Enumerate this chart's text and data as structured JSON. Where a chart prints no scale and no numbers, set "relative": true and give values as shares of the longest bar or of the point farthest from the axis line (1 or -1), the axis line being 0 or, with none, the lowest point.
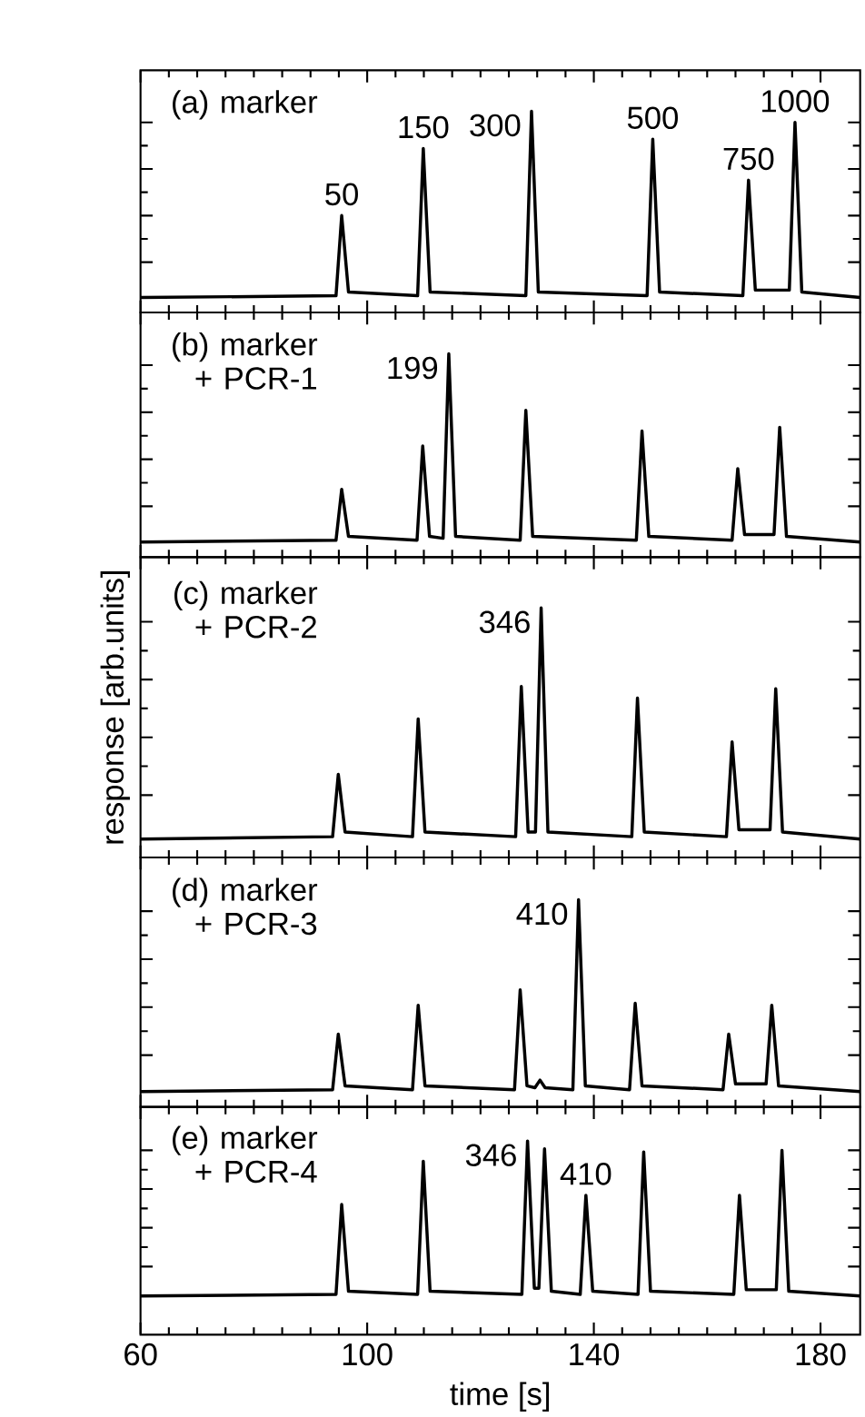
{
  "chart_data": [
    {
      "type": "line",
      "relative": true,
      "tick_labels": false,
      "xlim": [
        60,
        187
      ],
      "xticks": [
        60,
        100,
        140,
        180
      ],
      "annotations": [
        "(a) marker",
        {
          "text": "50",
          "x": 95.5,
          "y": 0.44
        },
        {
          "text": "150",
          "x": 109.9,
          "y": 0.8
        },
        {
          "text": "300",
          "x": 129,
          "y": 1
        },
        {
          "text": "500",
          "x": 150.4,
          "y": 0.85
        },
        {
          "text": "750",
          "x": 167.3,
          "y": 0.63
        },
        {
          "text": "1000",
          "x": 175.5,
          "y": 0.94
        }
      ],
      "series": [
        {
          "color": "#000000",
          "x": [
            60,
            94.5,
            95.5,
            96.7,
            108.9,
            109.9,
            111.1,
            128,
            129,
            130.2,
            149.4,
            150.4,
            151.6,
            166.3,
            167.3,
            168.5,
            174.5,
            175.5,
            176.7,
            187
          ],
          "values": [
            0,
            0.01,
            0.44,
            0.03,
            0.01,
            0.8,
            0.03,
            0.01,
            1,
            0.03,
            0.01,
            0.85,
            0.03,
            0.01,
            0.63,
            0.04,
            0.04,
            0.94,
            0.03,
            0
          ]
        }
      ]
    },
    {
      "type": "line",
      "relative": true,
      "tick_labels": false,
      "xlim": [
        60,
        187
      ],
      "xticks": [
        60,
        100,
        140,
        180
      ],
      "annotations": [
        "(b) marker + PCR-1",
        {
          "text": "199",
          "x": 114.4,
          "y": 1
        }
      ],
      "series": [
        {
          "color": "#000000",
          "x": [
            60,
            94.5,
            95.5,
            96.7,
            108.8,
            109.8,
            111,
            113.4,
            114.4,
            115.6,
            127,
            128,
            129.2,
            147.5,
            148.5,
            149.7,
            164.4,
            165.4,
            166.6,
            171.8,
            172.8,
            174,
            187
          ],
          "values": [
            0,
            0.01,
            0.28,
            0.03,
            0.01,
            0.51,
            0.03,
            0.02,
            1,
            0.03,
            0.01,
            0.7,
            0.03,
            0.01,
            0.59,
            0.03,
            0.01,
            0.39,
            0.04,
            0.04,
            0.61,
            0.03,
            0
          ]
        }
      ]
    },
    {
      "type": "line",
      "relative": true,
      "tick_labels": false,
      "xlim": [
        60,
        187
      ],
      "xticks": [
        60,
        100,
        140,
        180
      ],
      "ylabel": "response [arb.units]",
      "annotations": [
        "(c) marker + PCR-2",
        {
          "text": "346",
          "x": 130.7,
          "y": 1
        }
      ],
      "series": [
        {
          "color": "#000000",
          "x": [
            60,
            93.9,
            94.9,
            96.1,
            108,
            109,
            110.2,
            126.2,
            127.2,
            128.4,
            129.7,
            130.7,
            131.9,
            146.7,
            147.7,
            148.9,
            163.4,
            164.4,
            165.6,
            171.1,
            172.1,
            173.3,
            187
          ],
          "values": [
            0,
            0.01,
            0.28,
            0.03,
            0.01,
            0.52,
            0.03,
            0.01,
            0.66,
            0.03,
            0.03,
            1,
            0.03,
            0.01,
            0.61,
            0.03,
            0.01,
            0.42,
            0.04,
            0.04,
            0.65,
            0.03,
            0
          ]
        }
      ]
    },
    {
      "type": "line",
      "relative": true,
      "tick_labels": false,
      "xlim": [
        60,
        187
      ],
      "xticks": [
        60,
        100,
        140,
        180
      ],
      "annotations": [
        "(d) marker + PCR-3",
        {
          "text": "410",
          "x": 137.3,
          "y": 1
        }
      ],
      "series": [
        {
          "color": "#000000",
          "x": [
            60,
            93.9,
            94.9,
            96.1,
            108,
            109,
            110.2,
            126,
            127,
            128.2,
            129.6,
            130.5,
            131.4,
            136.3,
            137.3,
            138.5,
            146.3,
            147.3,
            148.5,
            162.8,
            163.8,
            165,
            170.4,
            171.4,
            172.6,
            187
          ],
          "values": [
            0,
            0.01,
            0.3,
            0.03,
            0.01,
            0.45,
            0.03,
            0.01,
            0.53,
            0.03,
            0.02,
            0.06,
            0.02,
            0.01,
            1,
            0.03,
            0.01,
            0.46,
            0.03,
            0.01,
            0.3,
            0.04,
            0.04,
            0.45,
            0.03,
            0
          ]
        }
      ]
    },
    {
      "type": "line",
      "relative": true,
      "tick_labels": "x",
      "xlim": [
        60,
        187
      ],
      "xticks": [
        60,
        100,
        140,
        180
      ],
      "xlabel": "time [s]",
      "annotations": [
        "(e) marker + PCR-4",
        {
          "text": "346",
          "x": 128.3,
          "y": 1
        },
        {
          "text": "410",
          "x": 138.6,
          "y": 0.65
        }
      ],
      "series": [
        {
          "color": "#000000",
          "x": [
            60,
            94.5,
            95.5,
            96.7,
            108.9,
            109.9,
            111.1,
            127.3,
            128.3,
            129.5,
            130.3,
            131.3,
            132.5,
            137.6,
            138.6,
            139.8,
            147.8,
            148.8,
            150,
            164.7,
            165.7,
            166.9,
            172.2,
            173.2,
            174.4,
            187
          ],
          "values": [
            0,
            0.01,
            0.59,
            0.03,
            0.01,
            0.87,
            0.03,
            0.01,
            1,
            0.05,
            0.05,
            0.95,
            0.03,
            0.01,
            0.65,
            0.03,
            0.01,
            0.93,
            0.03,
            0.01,
            0.65,
            0.04,
            0.04,
            0.94,
            0.03,
            0
          ]
        }
      ]
    }
  ]
}
